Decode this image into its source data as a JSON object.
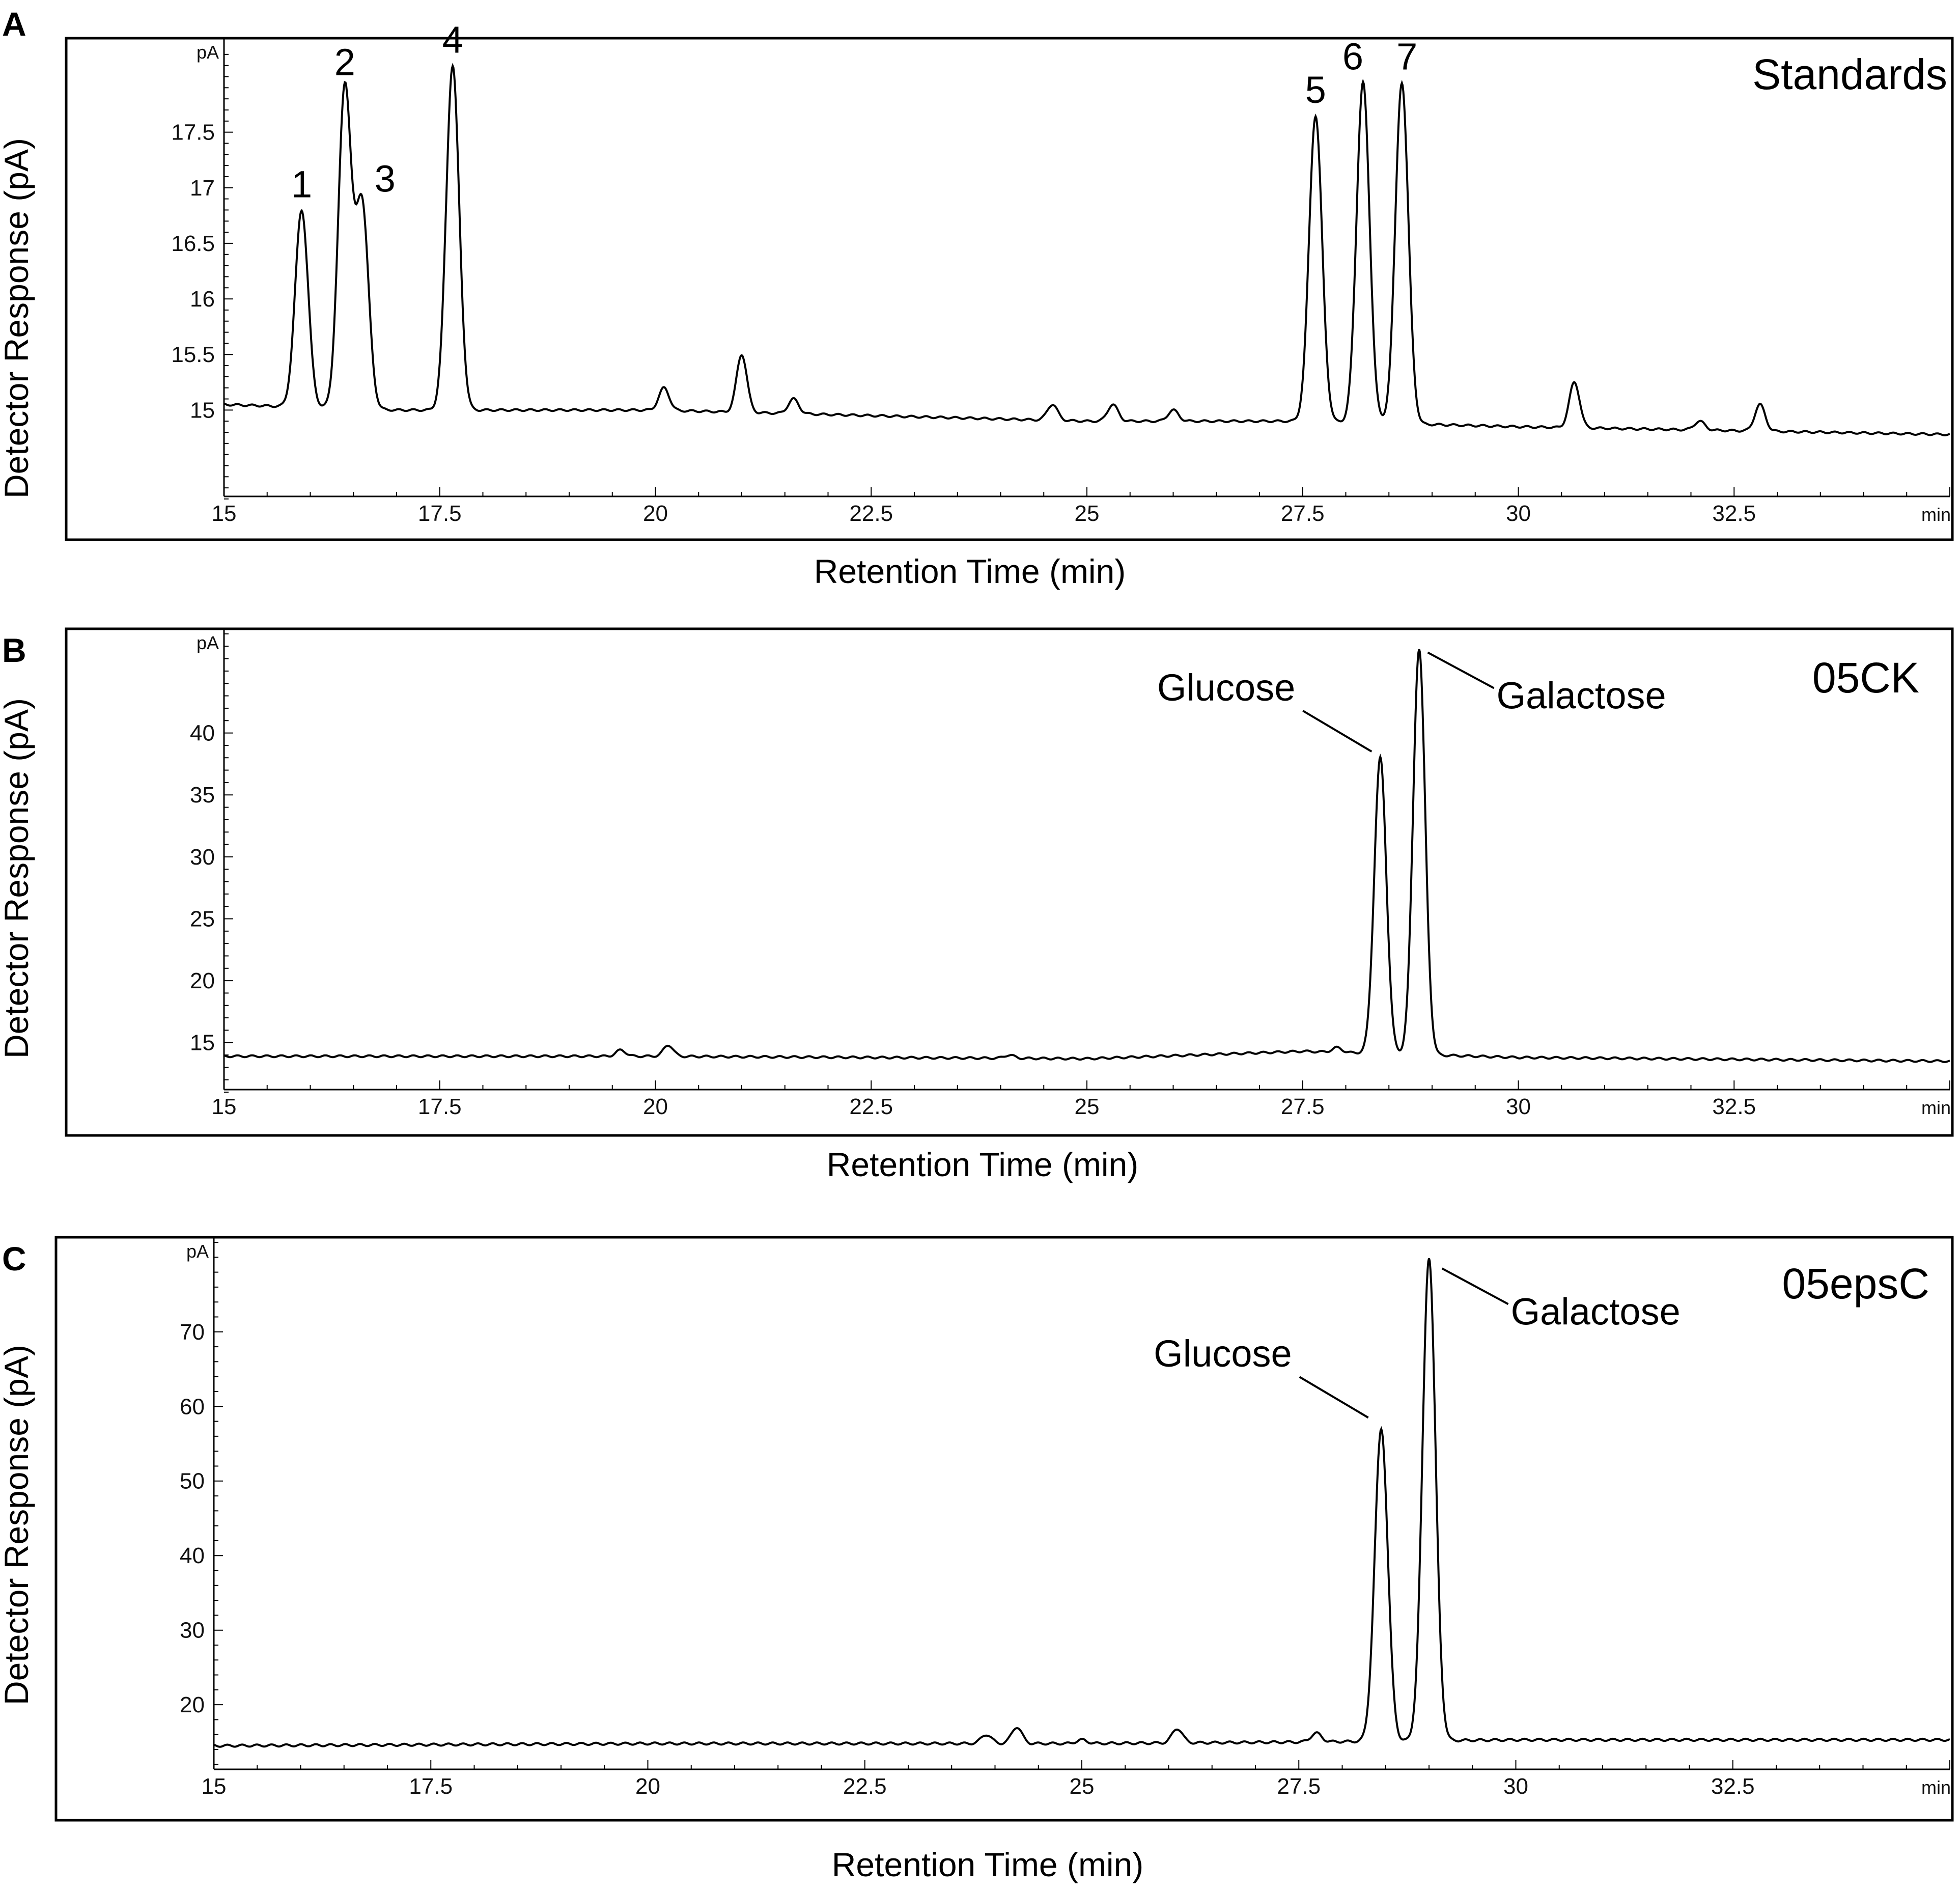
{
  "chart_data": [
    {
      "panel": "A",
      "type": "line",
      "sample_label": "Standards",
      "xlabel": "Retention Time (min)",
      "ylabel": "Detector Response (pA)",
      "x_unit": "min",
      "y_unit": "pA",
      "xlim": [
        15,
        35
      ],
      "ylim": [
        14.2,
        18.3
      ],
      "x_ticks": [
        15,
        17.5,
        20,
        22.5,
        25,
        27.5,
        30,
        32.5
      ],
      "x_tick_labels": [
        "15",
        "17.5",
        "20",
        "22.5",
        "25",
        "27.5",
        "30",
        "32.5"
      ],
      "y_ticks": [
        15,
        15.5,
        16,
        16.5,
        17,
        17.5
      ],
      "y_tick_labels": [
        "15",
        "15.5",
        "16",
        "16.5",
        "17",
        "17.5"
      ],
      "baseline": {
        "x": [
          15,
          17,
          20,
          22.5,
          25,
          27.5,
          30,
          35
        ],
        "y": [
          15.05,
          15.0,
          15.0,
          14.95,
          14.9,
          14.9,
          14.85,
          14.78
        ]
      },
      "peaks": [
        {
          "label": "1",
          "x": 15.9,
          "y": 16.8
        },
        {
          "label": "2",
          "x": 16.4,
          "y": 17.9
        },
        {
          "label": "3",
          "x": 16.6,
          "y": 16.85
        },
        {
          "label": "4",
          "x": 17.65,
          "y": 18.1
        },
        {
          "label": "",
          "x": 20.1,
          "y": 15.2
        },
        {
          "label": "",
          "x": 21.0,
          "y": 15.5
        },
        {
          "label": "",
          "x": 21.6,
          "y": 15.1
        },
        {
          "label": "",
          "x": 24.6,
          "y": 15.05
        },
        {
          "label": "",
          "x": 25.3,
          "y": 15.05
        },
        {
          "label": "",
          "x": 26.0,
          "y": 15.0
        },
        {
          "label": "5",
          "x": 27.65,
          "y": 17.65
        },
        {
          "label": "6",
          "x": 28.2,
          "y": 17.95
        },
        {
          "label": "7",
          "x": 28.65,
          "y": 17.95
        },
        {
          "label": "",
          "x": 30.65,
          "y": 15.25
        },
        {
          "label": "",
          "x": 32.1,
          "y": 14.9
        },
        {
          "label": "",
          "x": 32.8,
          "y": 15.05
        }
      ],
      "annotations": []
    },
    {
      "panel": "B",
      "type": "line",
      "sample_label": "05CK",
      "xlabel": "Retention Time (min)",
      "ylabel": "Detector Response (pA)",
      "x_unit": "min",
      "y_unit": "pA",
      "xlim": [
        15,
        35
      ],
      "ylim": [
        11,
        48
      ],
      "x_ticks": [
        15,
        17.5,
        20,
        22.5,
        25,
        27.5,
        30,
        32.5
      ],
      "x_tick_labels": [
        "15",
        "17.5",
        "20",
        "22.5",
        "25",
        "27.5",
        "30",
        "32.5"
      ],
      "y_ticks": [
        15,
        20,
        25,
        30,
        35,
        40
      ],
      "y_tick_labels": [
        "15",
        "20",
        "25",
        "30",
        "35",
        "40"
      ],
      "baseline": {
        "x": [
          15,
          20,
          25,
          27.5,
          30,
          35
        ],
        "y": [
          13.9,
          13.9,
          13.7,
          14.3,
          13.8,
          13.5
        ]
      },
      "peaks": [
        {
          "label": "",
          "x": 19.6,
          "y": 14.4
        },
        {
          "label": "",
          "x": 20.15,
          "y": 14.8
        },
        {
          "label": "",
          "x": 24.1,
          "y": 14.0
        },
        {
          "label": "",
          "x": 27.9,
          "y": 14.6
        },
        {
          "label": "Glucose",
          "x": 28.4,
          "y": 38.0
        },
        {
          "label": "Galactose",
          "x": 28.85,
          "y": 46.8
        }
      ],
      "annotations": [
        {
          "text": "Glucose",
          "target_x": 28.3,
          "target_y": 38.5
        },
        {
          "text": "Galactose",
          "target_x": 28.95,
          "target_y": 46.5
        }
      ]
    },
    {
      "panel": "C",
      "type": "line",
      "sample_label": "05epsC",
      "xlabel": "Retention Time (min)",
      "ylabel": "Detector Response (pA)",
      "x_unit": "min",
      "y_unit": "pA",
      "xlim": [
        15,
        35
      ],
      "ylim": [
        11,
        82
      ],
      "x_ticks": [
        15,
        17.5,
        20,
        22.5,
        25,
        27.5,
        30,
        32.5
      ],
      "x_tick_labels": [
        "15",
        "17.5",
        "20",
        "22.5",
        "25",
        "27.5",
        "30",
        "32.5"
      ],
      "y_ticks": [
        20,
        30,
        40,
        50,
        60,
        70
      ],
      "y_tick_labels": [
        "20",
        "30",
        "40",
        "50",
        "60",
        "70"
      ],
      "baseline": {
        "x": [
          15,
          20,
          25,
          27.5,
          30,
          35
        ],
        "y": [
          14.5,
          14.8,
          14.8,
          15.0,
          15.3,
          15.3
        ]
      },
      "peaks": [
        {
          "label": "",
          "x": 23.9,
          "y": 16.0
        },
        {
          "label": "",
          "x": 24.25,
          "y": 17.0
        },
        {
          "label": "",
          "x": 25.0,
          "y": 15.3
        },
        {
          "label": "",
          "x": 26.1,
          "y": 16.8
        },
        {
          "label": "",
          "x": 27.7,
          "y": 16.2
        },
        {
          "label": "Glucose",
          "x": 28.45,
          "y": 57.0
        },
        {
          "label": "Galactose",
          "x": 29.0,
          "y": 80.0
        }
      ],
      "annotations": [
        {
          "text": "Glucose",
          "target_x": 28.3,
          "target_y": 58.5
        },
        {
          "text": "Galactose",
          "target_x": 29.15,
          "target_y": 78.5
        }
      ]
    }
  ]
}
